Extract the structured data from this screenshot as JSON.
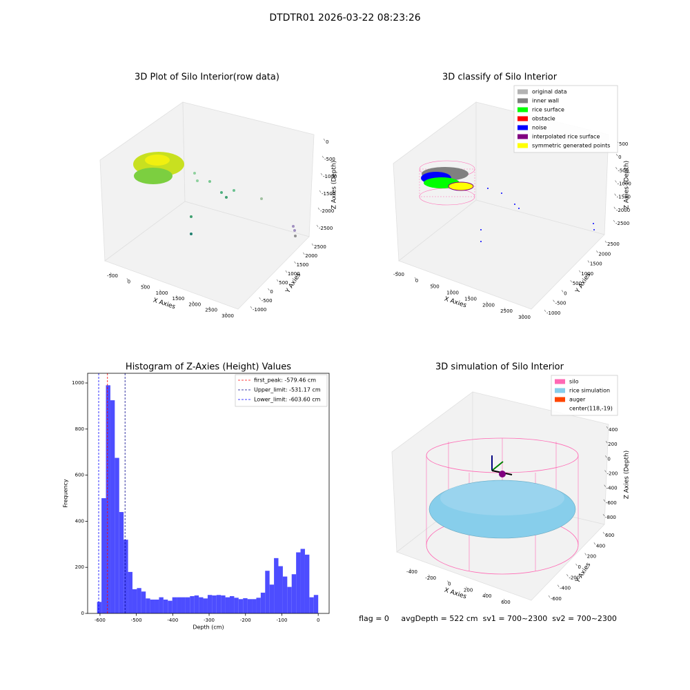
{
  "title": "DTDTR01 2026-03-22 08:23:26",
  "chart_data": [
    {
      "type": "scatter3d",
      "title": "3D Plot of Silo Interior(row data)",
      "xlabel": "X Axies",
      "ylabel": "Y Axies",
      "zlabel": "Z Axies (Depth)",
      "xticks": [
        -500,
        0,
        500,
        1000,
        1500,
        2000,
        2500,
        3000
      ],
      "yticks": [
        -1000,
        -500,
        0,
        500,
        1000,
        1500,
        2000,
        2500
      ],
      "zticks": [
        0,
        -500,
        -1000,
        -1500,
        -2000,
        -2500
      ]
    },
    {
      "type": "scatter3d",
      "title": "3D classify of Silo Interior",
      "xlabel": "X Axies",
      "ylabel": "Y Axies",
      "zlabel": "Z Axies (Depth)",
      "xticks": [
        -500,
        0,
        500,
        1000,
        1500,
        2000,
        2500,
        3000
      ],
      "yticks": [
        -1000,
        -500,
        0,
        500,
        1000,
        1500,
        2000,
        2500
      ],
      "zticks": [
        500,
        0,
        -500,
        -1000,
        -1500,
        -2000,
        -2500
      ],
      "legend": [
        {
          "name": "original data",
          "color": "#b3b3b3"
        },
        {
          "name": "inner wall",
          "color": "#808080"
        },
        {
          "name": "rice surface",
          "color": "#00ff00"
        },
        {
          "name": "obstacle",
          "color": "#ff0000"
        },
        {
          "name": "noise",
          "color": "#0000ff"
        },
        {
          "name": "interpolated rice surface",
          "color": "#800080"
        },
        {
          "name": "symmetric generated points",
          "color": "#ffff00"
        }
      ]
    },
    {
      "type": "histogram",
      "title": "Histogram of Z-Axies (Height) Values",
      "xlabel": "Depth (cm)",
      "ylabel": "Frequency",
      "color": "#4d4dff",
      "bins": [
        -608,
        -595.84,
        -583.68,
        -571.52,
        -559.36,
        -547.2,
        -535.04,
        -522.88,
        -510.72,
        -498.56,
        -486.4,
        -474.24,
        -462.08,
        -449.92,
        -437.76,
        -425.6,
        -413.44,
        -401.28,
        -389.12,
        -376.96,
        -364.8,
        -352.64,
        -340.48,
        -328.32,
        -316.16,
        -304,
        -291.84,
        -279.68,
        -267.52,
        -255.36,
        -243.2,
        -231.04,
        -218.88,
        -206.72,
        -194.56,
        -182.4,
        -170.24,
        -158.08,
        -145.92,
        -133.76,
        -121.6,
        -109.44,
        -97.28,
        -85.12,
        -72.96,
        -60.8,
        -48.64,
        -36.48,
        -24.32,
        -12.16,
        0
      ],
      "values": [
        50,
        500,
        990,
        925,
        675,
        440,
        320,
        180,
        105,
        110,
        95,
        65,
        60,
        60,
        70,
        60,
        55,
        70,
        70,
        70,
        70,
        75,
        78,
        70,
        65,
        80,
        78,
        80,
        78,
        70,
        75,
        68,
        62,
        66,
        62,
        62,
        68,
        90,
        185,
        125,
        240,
        205,
        160,
        115,
        170,
        265,
        280,
        255,
        70,
        80
      ],
      "xlim": [
        -634,
        30
      ],
      "ylim": [
        0,
        1042
      ],
      "xticks": [
        -600,
        -500,
        -400,
        -300,
        -200,
        -100,
        0
      ],
      "yticks": [
        0,
        200,
        400,
        600,
        800,
        1000
      ],
      "lines": [
        {
          "value": -579.46,
          "label": "first_peak: -579.46 cm",
          "color": "#ff0000"
        },
        {
          "value": -531.17,
          "label": "Upper_limit: -531.17 cm",
          "color": "#00008b"
        },
        {
          "value": -603.6,
          "label": "Lower_limit: -603.60 cm",
          "color": "#0000ff"
        }
      ]
    },
    {
      "type": "surface3d",
      "title": "3D simulation of Silo Interior",
      "xlabel": "X Axies",
      "ylabel": "Y Axies",
      "zlabel": "Z Axies (Depth)",
      "xticks": [
        -400,
        -200,
        0,
        200,
        400,
        600
      ],
      "yticks": [
        -600,
        -400,
        -200,
        0,
        200,
        400,
        600
      ],
      "zticks": [
        400,
        200,
        0,
        -200,
        -400,
        -600,
        -800
      ],
      "legend": [
        {
          "name": "silo",
          "color": "#ff69b4"
        },
        {
          "name": "rice simulation",
          "color": "#87ceeb"
        },
        {
          "name": "auger",
          "color": "#ff4500"
        },
        {
          "name": "center(118,-19)",
          "color": "#ffffff"
        }
      ]
    }
  ],
  "footer": "flag = 0     avgDepth = 522 cm  sv1 = 700~2300  sv2 = 700~2300"
}
